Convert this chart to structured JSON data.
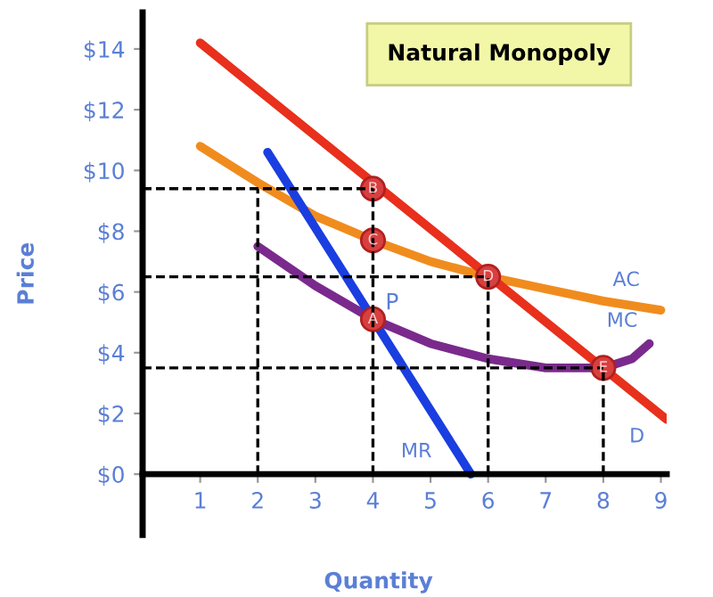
{
  "chart_data": {
    "type": "line",
    "title": "Natural Monopoly",
    "xlabel": "Quantity",
    "ylabel": "Price",
    "xlim": [
      0,
      9.1
    ],
    "ylim": [
      -2,
      15.2
    ],
    "xticks": [
      1,
      2,
      3,
      4,
      5,
      6,
      7,
      8,
      9
    ],
    "yticks": [
      {
        "value": 0,
        "label": "$0"
      },
      {
        "value": 2,
        "label": "$2"
      },
      {
        "value": 4,
        "label": "$4"
      },
      {
        "value": 6,
        "label": "$6"
      },
      {
        "value": 8,
        "label": "$8"
      },
      {
        "value": 10,
        "label": "$10"
      },
      {
        "value": 12,
        "label": "$12"
      },
      {
        "value": 14,
        "label": "$14"
      }
    ],
    "grid": false,
    "legend": false,
    "series": [
      {
        "type": "line",
        "color": "#000000",
        "line_style": "dashed",
        "x": [
          0,
          4
        ],
        "values": [
          9.4,
          9.4
        ]
      },
      {
        "type": "line",
        "color": "#000000",
        "line_style": "dashed",
        "x": [
          0,
          6
        ],
        "values": [
          6.5,
          6.5
        ]
      },
      {
        "type": "line",
        "color": "#000000",
        "line_style": "dashed",
        "x": [
          0,
          8
        ],
        "values": [
          3.5,
          3.5
        ]
      },
      {
        "type": "line",
        "color": "#000000",
        "line_style": "dashed",
        "x": [
          2,
          2
        ],
        "values": [
          0,
          9.4
        ]
      },
      {
        "type": "line",
        "color": "#000000",
        "line_style": "dashed",
        "x": [
          4,
          4
        ],
        "values": [
          0,
          9.4
        ]
      },
      {
        "type": "line",
        "color": "#000000",
        "line_style": "dashed",
        "x": [
          6,
          6
        ],
        "values": [
          0,
          6.5
        ]
      },
      {
        "type": "line",
        "color": "#000000",
        "line_style": "dashed",
        "x": [
          8,
          8
        ],
        "values": [
          0,
          3.5
        ]
      },
      {
        "type": "line",
        "name": "AC",
        "color": "#f08c1e",
        "x": [
          1,
          2,
          3,
          4,
          5,
          6,
          7,
          8,
          9
        ],
        "values": [
          10.8,
          9.6,
          8.5,
          7.7,
          7.0,
          6.5,
          6.1,
          5.7,
          5.4
        ]
      },
      {
        "type": "line",
        "name": "MC",
        "color": "#7a2a8c",
        "x": [
          2,
          3,
          4,
          5,
          6,
          7,
          8,
          8.5,
          8.8
        ],
        "values": [
          7.5,
          6.2,
          5.1,
          4.3,
          3.8,
          3.5,
          3.5,
          3.8,
          4.3
        ]
      },
      {
        "type": "line",
        "name": "MR",
        "color": "#1a3ee0",
        "x": [
          2.17,
          5.7
        ],
        "values": [
          10.6,
          0
        ]
      },
      {
        "type": "line",
        "name": "D",
        "color": "#e8301c",
        "x": [
          1,
          9.1
        ],
        "values": [
          14.2,
          1.8
        ]
      },
      {
        "type": "scatter",
        "color": "#d84040",
        "x": [
          4,
          4,
          6,
          4,
          8
        ],
        "values": [
          9.4,
          7.7,
          6.5,
          5.1,
          3.5
        ]
      }
    ],
    "annotations": [
      {
        "text": "B",
        "x": 4,
        "y": 9.4
      },
      {
        "text": "C",
        "x": 4,
        "y": 7.7
      },
      {
        "text": "D",
        "x": 6,
        "y": 6.5
      },
      {
        "text": "A",
        "x": 4,
        "y": 5.1
      },
      {
        "text": "E",
        "x": 8,
        "y": 3.5
      },
      {
        "text": "P",
        "x": 4,
        "y": 5.1
      }
    ]
  }
}
